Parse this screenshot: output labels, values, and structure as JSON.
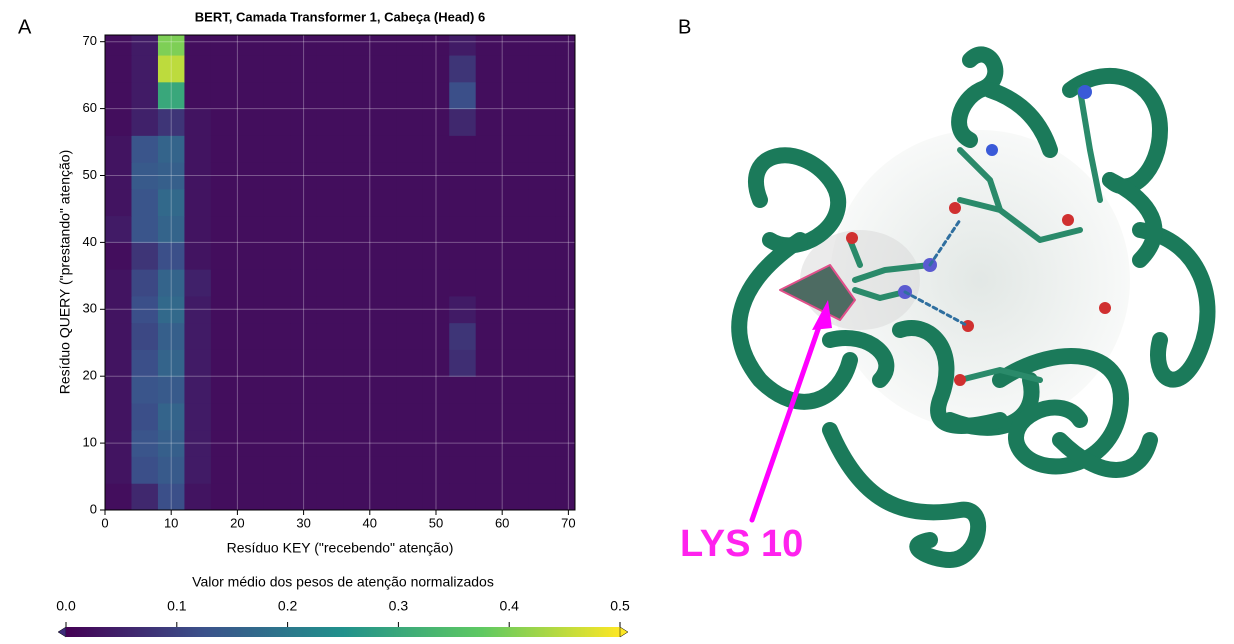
{
  "chart_data": {
    "type": "heatmap",
    "title": "BERT, Camada Transformer 1, Cabeça (Head) 6",
    "x_label": "Resíduo KEY (\"recebendo\" atenção)",
    "y_label": "Resíduo QUERY (\"prestando\" atenção)",
    "xbins": [
      0,
      4,
      8,
      12,
      16,
      20,
      24,
      28,
      32,
      36,
      40,
      44,
      48,
      52,
      56,
      60,
      64,
      68,
      71
    ],
    "ybins": [
      0,
      4,
      8,
      12,
      16,
      20,
      24,
      28,
      32,
      36,
      40,
      44,
      48,
      52,
      56,
      60,
      64,
      68,
      71
    ],
    "xlim": [
      0,
      71
    ],
    "ylim": [
      0,
      71
    ],
    "xticks": [
      0,
      10,
      20,
      30,
      40,
      50,
      60,
      70
    ],
    "yticks": [
      0,
      10,
      20,
      30,
      40,
      50,
      60,
      70
    ],
    "grid": true,
    "colormap": "viridis",
    "clim": [
      0,
      0.5
    ],
    "colorbar_label": "Valor médio dos pesos de atenção normalizados",
    "colorbar_ticks": [
      {
        "value": 0,
        "label": "0.0"
      },
      0.1,
      0.2,
      0.3,
      0.4,
      0.5
    ],
    "values": [
      [
        0.02,
        0.06,
        0.12,
        0.03,
        0.02,
        0.02,
        0.02,
        0.02,
        0.02,
        0.02,
        0.02,
        0.02,
        0.02,
        0.02,
        0.02,
        0.02,
        0.02,
        0.02
      ],
      [
        0.03,
        0.12,
        0.14,
        0.04,
        0.02,
        0.02,
        0.02,
        0.02,
        0.02,
        0.02,
        0.02,
        0.02,
        0.02,
        0.02,
        0.02,
        0.02,
        0.02,
        0.02
      ],
      [
        0.03,
        0.13,
        0.15,
        0.04,
        0.02,
        0.02,
        0.02,
        0.02,
        0.02,
        0.02,
        0.02,
        0.02,
        0.02,
        0.02,
        0.02,
        0.02,
        0.02,
        0.02
      ],
      [
        0.03,
        0.12,
        0.16,
        0.04,
        0.02,
        0.02,
        0.02,
        0.02,
        0.02,
        0.02,
        0.02,
        0.02,
        0.02,
        0.02,
        0.02,
        0.02,
        0.02,
        0.02
      ],
      [
        0.03,
        0.13,
        0.14,
        0.04,
        0.02,
        0.02,
        0.02,
        0.02,
        0.02,
        0.02,
        0.02,
        0.02,
        0.02,
        0.02,
        0.02,
        0.02,
        0.02,
        0.02
      ],
      [
        0.03,
        0.12,
        0.16,
        0.04,
        0.02,
        0.02,
        0.02,
        0.02,
        0.02,
        0.02,
        0.02,
        0.02,
        0.02,
        0.07,
        0.02,
        0.02,
        0.02,
        0.02
      ],
      [
        0.03,
        0.11,
        0.15,
        0.04,
        0.02,
        0.02,
        0.02,
        0.02,
        0.02,
        0.02,
        0.02,
        0.02,
        0.02,
        0.08,
        0.02,
        0.02,
        0.02,
        0.02
      ],
      [
        0.03,
        0.12,
        0.17,
        0.04,
        0.02,
        0.02,
        0.02,
        0.02,
        0.02,
        0.02,
        0.02,
        0.02,
        0.02,
        0.04,
        0.02,
        0.02,
        0.02,
        0.02
      ],
      [
        0.03,
        0.11,
        0.16,
        0.05,
        0.02,
        0.02,
        0.02,
        0.02,
        0.02,
        0.02,
        0.02,
        0.02,
        0.02,
        0.02,
        0.02,
        0.02,
        0.02,
        0.02
      ],
      [
        0.02,
        0.08,
        0.12,
        0.03,
        0.02,
        0.02,
        0.02,
        0.02,
        0.02,
        0.02,
        0.02,
        0.02,
        0.02,
        0.02,
        0.02,
        0.02,
        0.02,
        0.02
      ],
      [
        0.04,
        0.13,
        0.16,
        0.03,
        0.02,
        0.02,
        0.02,
        0.02,
        0.02,
        0.02,
        0.02,
        0.02,
        0.02,
        0.02,
        0.02,
        0.02,
        0.02,
        0.02
      ],
      [
        0.03,
        0.13,
        0.17,
        0.03,
        0.02,
        0.02,
        0.02,
        0.02,
        0.02,
        0.02,
        0.02,
        0.02,
        0.02,
        0.02,
        0.02,
        0.02,
        0.02,
        0.02
      ],
      [
        0.03,
        0.14,
        0.15,
        0.03,
        0.02,
        0.02,
        0.02,
        0.02,
        0.02,
        0.02,
        0.02,
        0.02,
        0.02,
        0.02,
        0.02,
        0.02,
        0.02,
        0.02
      ],
      [
        0.03,
        0.13,
        0.16,
        0.03,
        0.02,
        0.02,
        0.02,
        0.02,
        0.02,
        0.02,
        0.02,
        0.02,
        0.02,
        0.02,
        0.02,
        0.02,
        0.02,
        0.02
      ],
      [
        0.02,
        0.05,
        0.08,
        0.03,
        0.02,
        0.02,
        0.02,
        0.02,
        0.02,
        0.02,
        0.02,
        0.02,
        0.02,
        0.06,
        0.02,
        0.02,
        0.02,
        0.02
      ],
      [
        0.02,
        0.04,
        0.3,
        0.02,
        0.02,
        0.02,
        0.02,
        0.02,
        0.02,
        0.02,
        0.02,
        0.02,
        0.02,
        0.12,
        0.02,
        0.02,
        0.02,
        0.02
      ],
      [
        0.02,
        0.04,
        0.45,
        0.02,
        0.02,
        0.02,
        0.02,
        0.02,
        0.02,
        0.02,
        0.02,
        0.02,
        0.02,
        0.08,
        0.02,
        0.02,
        0.02,
        0.02
      ],
      [
        0.02,
        0.04,
        0.4,
        0.02,
        0.02,
        0.02,
        0.02,
        0.02,
        0.02,
        0.02,
        0.02,
        0.02,
        0.02,
        0.04,
        0.02,
        0.02,
        0.02,
        0.02
      ]
    ]
  },
  "panels": {
    "a": "A",
    "b": "B"
  },
  "image": {
    "annotation": "LYS 10"
  }
}
